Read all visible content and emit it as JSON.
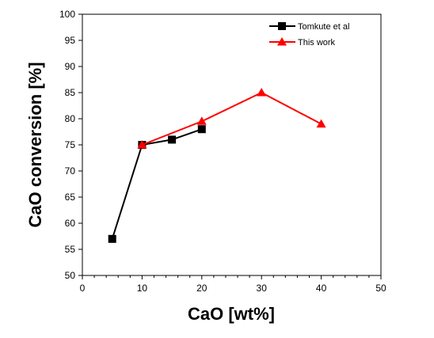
{
  "chart_data": {
    "type": "line",
    "title": "",
    "xlabel": "CaO [wt%]",
    "ylabel": "CaO conversion [%]",
    "xlim": [
      0,
      50
    ],
    "ylim": [
      50,
      100
    ],
    "x_ticks": [
      "0",
      "10",
      "20",
      "30",
      "40",
      "50"
    ],
    "y_ticks": [
      "50",
      "55",
      "60",
      "65",
      "70",
      "75",
      "80",
      "85",
      "90",
      "95",
      "100"
    ],
    "grid": false,
    "legend_position": "top-right",
    "series": [
      {
        "name": "Tomkute et al",
        "color": "#000000",
        "marker": "square",
        "points": [
          {
            "x": 5,
            "y": 57
          },
          {
            "x": 10,
            "y": 75
          },
          {
            "x": 15,
            "y": 76
          },
          {
            "x": 20,
            "y": 78
          }
        ]
      },
      {
        "name": "This work",
        "color": "#ff0000",
        "marker": "triangle",
        "points": [
          {
            "x": 10,
            "y": 75
          },
          {
            "x": 20,
            "y": 79.5
          },
          {
            "x": 30,
            "y": 85
          },
          {
            "x": 40,
            "y": 79
          }
        ]
      }
    ]
  }
}
